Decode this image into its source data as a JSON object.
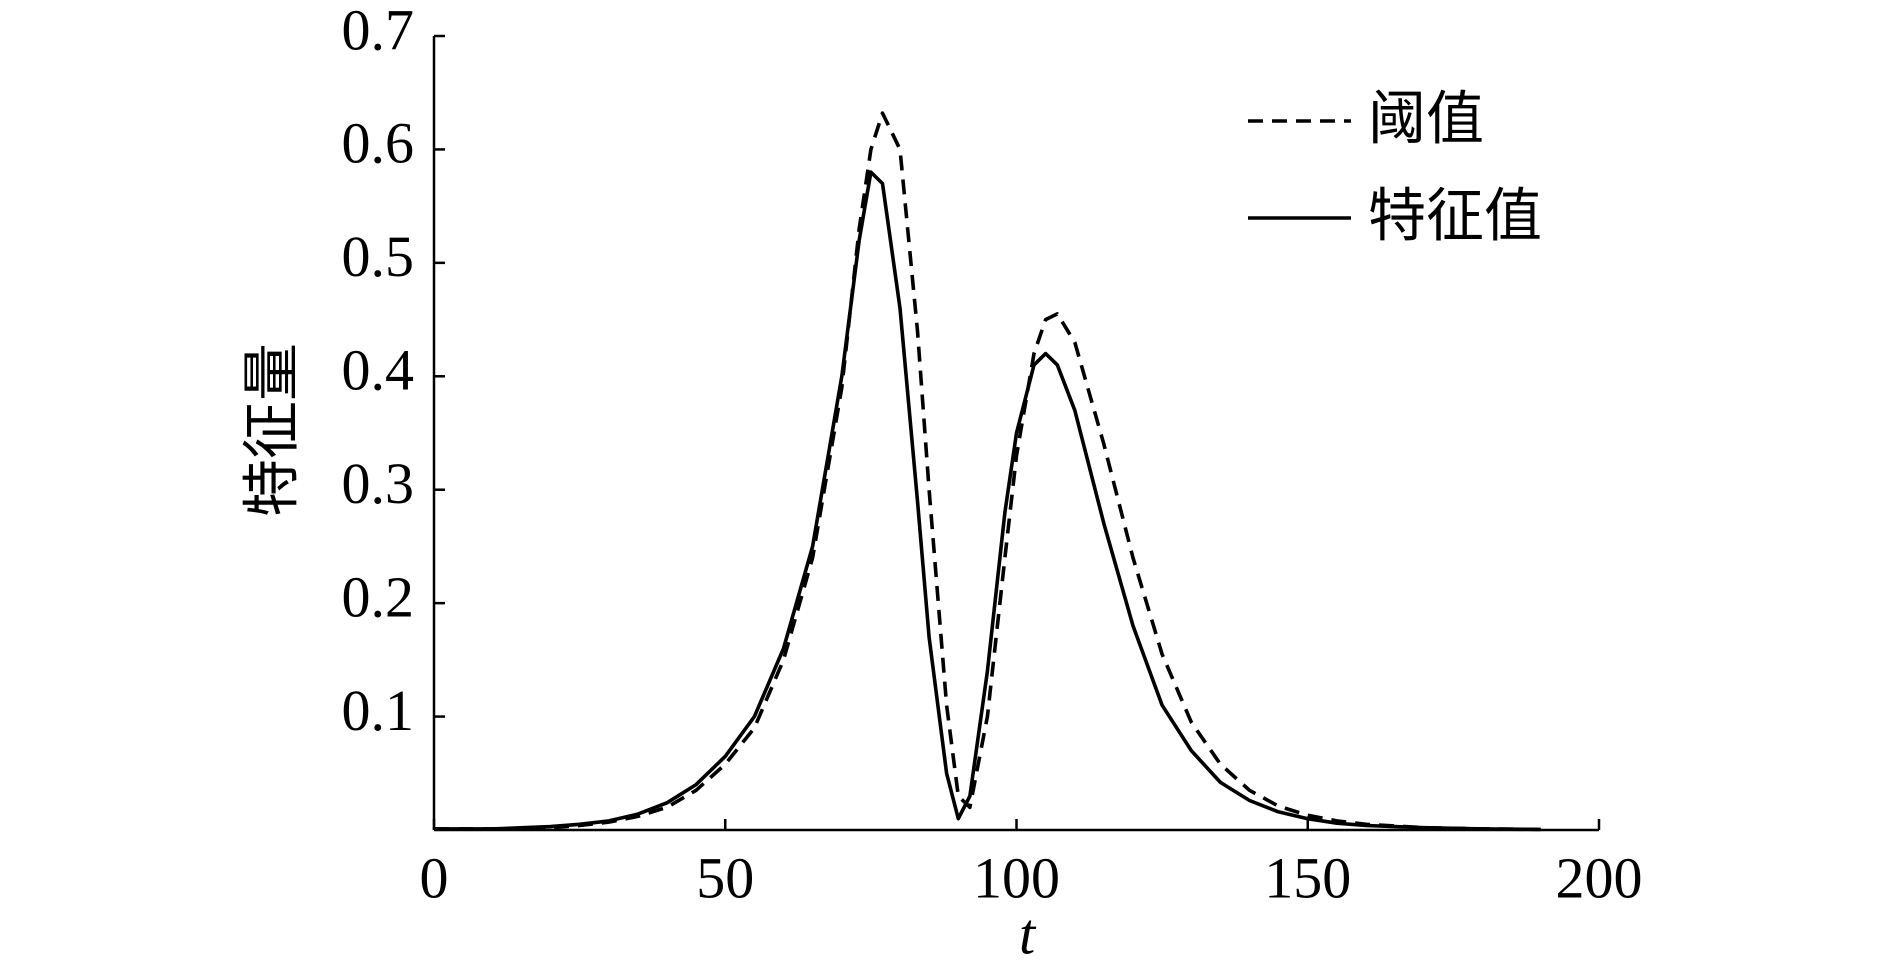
{
  "chart_data": {
    "type": "line",
    "x_label": "t",
    "y_label": "特征量",
    "x": [
      0,
      10,
      20,
      25,
      30,
      35,
      40,
      45,
      50,
      55,
      60,
      65,
      70,
      73,
      75,
      77,
      80,
      83,
      85,
      88,
      90,
      92,
      95,
      98,
      100,
      103,
      105,
      107,
      110,
      115,
      120,
      125,
      130,
      135,
      140,
      145,
      150,
      155,
      160,
      170,
      180,
      190
    ],
    "series": [
      {
        "name": "阈值",
        "color": "#000000",
        "dashed": true,
        "values": [
          0.001,
          0.001,
          0.002,
          0.004,
          0.007,
          0.012,
          0.02,
          0.035,
          0.058,
          0.09,
          0.15,
          0.24,
          0.39,
          0.53,
          0.6,
          0.632,
          0.6,
          0.44,
          0.3,
          0.11,
          0.03,
          0.02,
          0.1,
          0.24,
          0.33,
          0.42,
          0.45,
          0.455,
          0.43,
          0.34,
          0.24,
          0.155,
          0.095,
          0.058,
          0.035,
          0.021,
          0.013,
          0.008,
          0.005,
          0.002,
          0.001,
          0.0005
        ]
      },
      {
        "name": "特征值",
        "color": "#000000",
        "dashed": false,
        "values": [
          0.001,
          0.001,
          0.003,
          0.005,
          0.008,
          0.014,
          0.024,
          0.04,
          0.065,
          0.1,
          0.16,
          0.25,
          0.4,
          0.52,
          0.58,
          0.57,
          0.46,
          0.29,
          0.17,
          0.05,
          0.01,
          0.03,
          0.14,
          0.28,
          0.35,
          0.41,
          0.42,
          0.41,
          0.37,
          0.27,
          0.18,
          0.11,
          0.07,
          0.042,
          0.026,
          0.016,
          0.01,
          0.006,
          0.004,
          0.002,
          0.001,
          0.0005
        ]
      }
    ],
    "xlim": [
      0,
      200
    ],
    "xticks": [
      0,
      50,
      100,
      150,
      200
    ],
    "ylim": [
      0,
      0.7
    ],
    "yticks": [
      0.1,
      0.2,
      0.3,
      0.4,
      0.5,
      0.6,
      0.7
    ],
    "grid": false,
    "legend": "upper right"
  }
}
